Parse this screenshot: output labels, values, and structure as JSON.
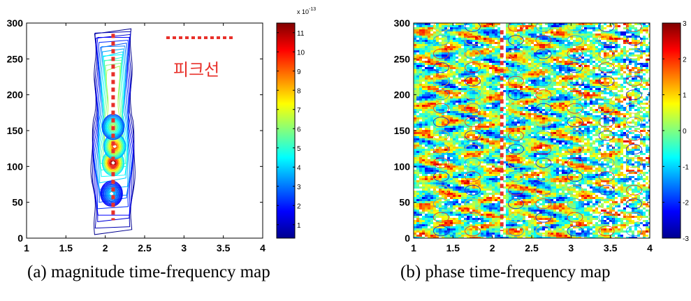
{
  "chart_data": [
    {
      "type": "contour",
      "xlim": [
        1,
        4
      ],
      "ylim": [
        0,
        300
      ],
      "x_ticks": [
        "1",
        "1.5",
        "2",
        "2.5",
        "3",
        "3.5",
        "4"
      ],
      "y_ticks": [
        "0",
        "50",
        "100",
        "150",
        "200",
        "250",
        "300"
      ],
      "caption": "(a) magnitude time-frequency map",
      "legend": {
        "label": "피크선",
        "style": "dotted",
        "color": "#e8302a"
      },
      "peak_line": {
        "x": 2.1,
        "y_range": [
          25,
          285
        ]
      },
      "colorbar": {
        "exponent_label": "x 10",
        "exponent_power": "-13",
        "range": [
          0.3,
          11.5
        ],
        "ticks": [
          "1",
          "2",
          "3",
          "4",
          "5",
          "6",
          "7",
          "8",
          "9",
          "10",
          "11"
        ]
      },
      "hotspots": [
        {
          "x": 2.1,
          "y": 105,
          "peak": 11.5
        },
        {
          "x": 2.12,
          "y": 128,
          "peak": 9.5
        },
        {
          "x": 2.1,
          "y": 155,
          "peak": 6.5
        },
        {
          "x": 2.08,
          "y": 62,
          "peak": 4.0
        }
      ]
    },
    {
      "type": "contour",
      "xlim": [
        1,
        4
      ],
      "ylim": [
        0,
        300
      ],
      "x_ticks": [
        "1",
        "1.5",
        "2",
        "2.5",
        "3",
        "3.5",
        "4"
      ],
      "y_ticks": [
        "0",
        "50",
        "100",
        "150",
        "200",
        "250",
        "300"
      ],
      "caption": "(b) phase time-frequency map",
      "peak_line": {
        "x": 2.12,
        "y_range": [
          10,
          290
        ]
      },
      "colorbar": {
        "range": [
          -3,
          3
        ],
        "ticks": [
          "3",
          "2",
          "1",
          "0",
          "-1",
          "-2",
          "-3"
        ]
      }
    }
  ],
  "colors": {
    "peak_line": "#e8302a",
    "axis": "#000000"
  }
}
